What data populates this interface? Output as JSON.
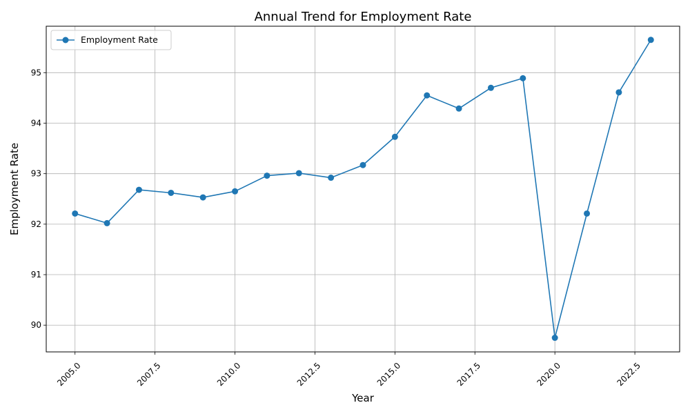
{
  "chart_data": {
    "type": "line",
    "title": "Annual Trend for Employment Rate",
    "xlabel": "Year",
    "ylabel": "Employment Rate",
    "xlim": [
      2004.1,
      2023.9
    ],
    "ylim": [
      89.47,
      95.92
    ],
    "x_ticks": [
      2005.0,
      2007.5,
      2010.0,
      2012.5,
      2015.0,
      2017.5,
      2020.0,
      2022.5
    ],
    "x_tick_labels": [
      "2005.0",
      "2007.5",
      "2010.0",
      "2012.5",
      "2015.0",
      "2017.5",
      "2020.0",
      "2022.5"
    ],
    "y_ticks": [
      90,
      91,
      92,
      93,
      94,
      95
    ],
    "y_tick_labels": [
      "90",
      "91",
      "92",
      "93",
      "94",
      "95"
    ],
    "grid": true,
    "legend_position": "top-left",
    "series": [
      {
        "name": "Employment Rate",
        "color": "#1f77b4",
        "marker": "circle",
        "x": [
          2005,
          2006,
          2007,
          2008,
          2009,
          2010,
          2011,
          2012,
          2013,
          2014,
          2015,
          2016,
          2017,
          2018,
          2019,
          2020,
          2021,
          2022,
          2023
        ],
        "y": [
          92.21,
          92.02,
          92.68,
          92.62,
          92.53,
          92.65,
          92.96,
          93.01,
          92.92,
          93.17,
          93.73,
          94.55,
          94.29,
          94.7,
          94.89,
          89.75,
          92.21,
          94.61,
          95.65
        ]
      }
    ]
  }
}
